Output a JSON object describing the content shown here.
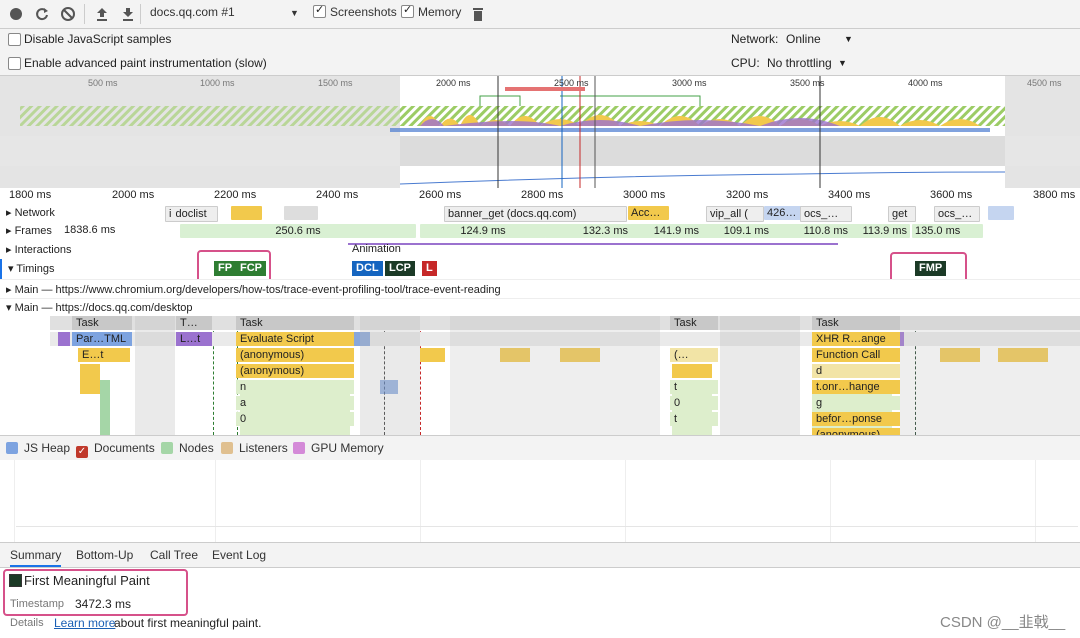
{
  "toolbar": {
    "profile_select": "docs.qq.com #1",
    "screenshots_label": "Screenshots",
    "memory_label": "Memory"
  },
  "settings": {
    "disable_js_samples": "Disable JavaScript samples",
    "advanced_paint": "Enable advanced paint instrumentation (slow)",
    "network_label": "Network:",
    "network_value": "Online",
    "cpu_label": "CPU:",
    "cpu_value": "No throttling"
  },
  "overview_ticks": [
    "500 ms",
    "1000 ms",
    "1500 ms",
    "2000 ms",
    "2500 ms",
    "3000 ms",
    "3500 ms",
    "4000 ms",
    "4500 ms"
  ],
  "ruler_ticks": [
    "1800 ms",
    "2000 ms",
    "2200 ms",
    "2400 ms",
    "2600 ms",
    "2800 ms",
    "3000 ms",
    "3200 ms",
    "3400 ms",
    "3600 ms",
    "3800 ms"
  ],
  "tracks": {
    "network": "Network",
    "frames": "Frames",
    "interactions": "Interactions",
    "timings": "Timings",
    "main1": "Main — https://www.chromium.org/developers/how-tos/trace-event-profiling-tool/trace-event-reading",
    "main2": "Main — https://docs.qq.com/desktop"
  },
  "network_requests": [
    "doclist",
    "banner_get (docs.qq.com)",
    "Acc…",
    "vip_all (",
    "426…",
    "ocs_…",
    "get",
    "ocs_…"
  ],
  "frames": [
    "1838.6 ms",
    "250.6 ms",
    "124.9 ms",
    "132.3 ms",
    "141.9 ms",
    "109.1 ms",
    "110.8 ms",
    "113.9 ms",
    "135.0 ms"
  ],
  "interaction_label": "Animation",
  "timings": {
    "fp": "FP",
    "fcp": "FCP",
    "dcl": "DCL",
    "lcp": "LCP",
    "l": "L",
    "fmp": "FMP"
  },
  "flame": {
    "task1": "Task",
    "task2": "T…",
    "task3": "Task",
    "task4": "Task",
    "task5": "Task",
    "parse": "Par…TML",
    "lt": "L…t",
    "evaluate": "Evaluate Script",
    "anon1": "(anonymous)",
    "anon2": "(anonymous)",
    "n": "n",
    "a": "a",
    "zero": "0",
    "et": "E…t",
    "paren": "(…",
    "t1": "t",
    "zero2": "0",
    "t2": "t",
    "xhr": "XHR R…ange",
    "fcall": "Function Call",
    "d": "d",
    "onr": "t.onr…hange",
    "g": "g",
    "befor": "befor…ponse",
    "anon3": "(anonymous)"
  },
  "legend": [
    "JS Heap",
    "Documents",
    "Nodes",
    "Listeners",
    "GPU Memory"
  ],
  "bottom_tabs": [
    "Summary",
    "Bottom-Up",
    "Call Tree",
    "Event Log"
  ],
  "summary": {
    "title": "First Meaningful Paint",
    "timestamp_label": "Timestamp",
    "timestamp_value": "3472.3 ms",
    "details_label": "Details",
    "learn_more": "Learn more",
    "details_rest": "about first meaningful paint."
  },
  "watermark": "CSDN @__韭戟__",
  "colors": {
    "fp": "#2e7d32",
    "dcl": "#1565c0",
    "lcp": "#1b3a26",
    "load": "#c62828",
    "highlight": "#d6518a",
    "task": "#c8c8c8",
    "script": "#f2c94c",
    "js_heap": "#4a7bd0"
  }
}
